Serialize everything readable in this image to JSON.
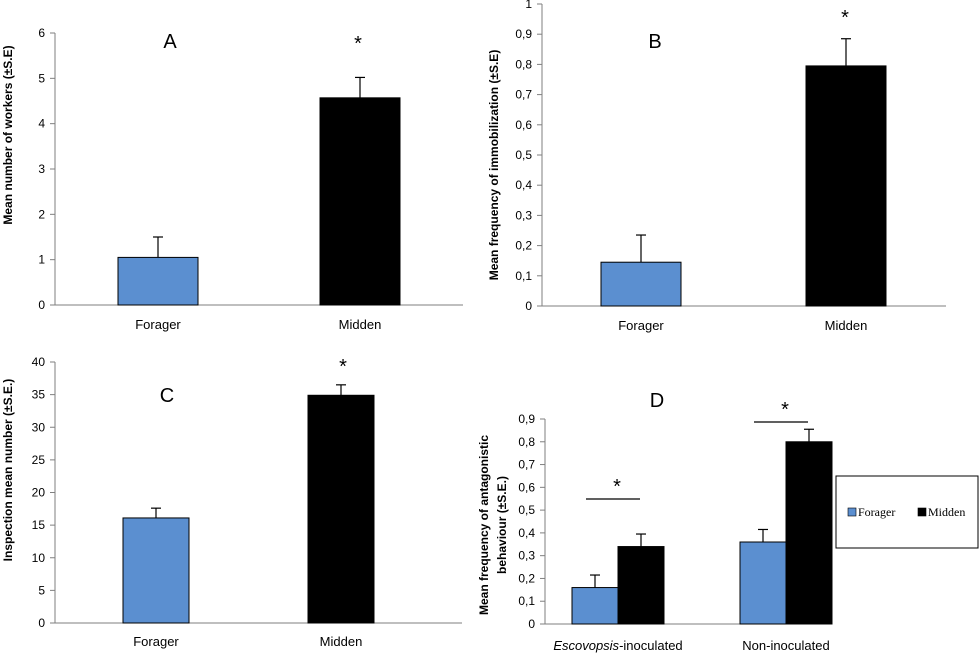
{
  "chart_data": [
    {
      "panel": "A",
      "type": "bar",
      "categories": [
        "Forager",
        "Midden"
      ],
      "values": [
        1.05,
        4.57
      ],
      "errors": [
        0.45,
        0.45
      ],
      "colors": [
        "#5b8fd0",
        "#000000"
      ],
      "ylabel": "Mean number of workers (±S.E)",
      "ylim": [
        0,
        6
      ],
      "yticks": [
        "0",
        "1",
        "2",
        "3",
        "4",
        "5",
        "6"
      ],
      "significance": "*"
    },
    {
      "panel": "B",
      "type": "bar",
      "categories": [
        "Forager",
        "Midden"
      ],
      "values": [
        0.145,
        0.795
      ],
      "errors": [
        0.09,
        0.09
      ],
      "colors": [
        "#5b8fd0",
        "#000000"
      ],
      "ylabel": "Mean frequency of immobilization (±S.E)",
      "ylim": [
        0,
        1
      ],
      "yticks": [
        "0",
        "0,1",
        "0,2",
        "0,3",
        "0,4",
        "0,5",
        "0,6",
        "0,7",
        "0,8",
        "0,9",
        "1"
      ],
      "significance": "*"
    },
    {
      "panel": "C",
      "type": "bar",
      "categories": [
        "Forager",
        "Midden"
      ],
      "values": [
        16.1,
        34.9
      ],
      "errors": [
        1.5,
        1.6
      ],
      "colors": [
        "#5b8fd0",
        "#000000"
      ],
      "ylabel": "Inspection mean number (±S.E.)",
      "ylim": [
        0,
        40
      ],
      "yticks": [
        "0",
        "5",
        "10",
        "15",
        "20",
        "25",
        "30",
        "35",
        "40"
      ],
      "significance": "*"
    },
    {
      "panel": "D",
      "type": "bar",
      "categories": [
        {
          "prefix": "Escovopsis",
          "suffix": "-inoculated"
        },
        {
          "prefix": "",
          "suffix": "Non-inoculated"
        }
      ],
      "series": [
        {
          "name": "Forager",
          "color": "#5b8fd0",
          "values": [
            0.16,
            0.36
          ],
          "errors": [
            0.055,
            0.055
          ]
        },
        {
          "name": "Midden",
          "color": "#000000",
          "values": [
            0.34,
            0.8
          ],
          "errors": [
            0.055,
            0.055
          ]
        }
      ],
      "ylabel": "Mean frequency of antagonistic behaviour (±S.E.)",
      "ylabel_lines": [
        "Mean frequency of antagonistic",
        "behaviour (±S.E.)"
      ],
      "ylim": [
        0,
        0.9
      ],
      "yticks": [
        "0",
        "0,1",
        "0,2",
        "0,3",
        "0,4",
        "0,5",
        "0,6",
        "0,7",
        "0,8",
        "0,9"
      ],
      "significance": "*",
      "legend": "right"
    }
  ]
}
